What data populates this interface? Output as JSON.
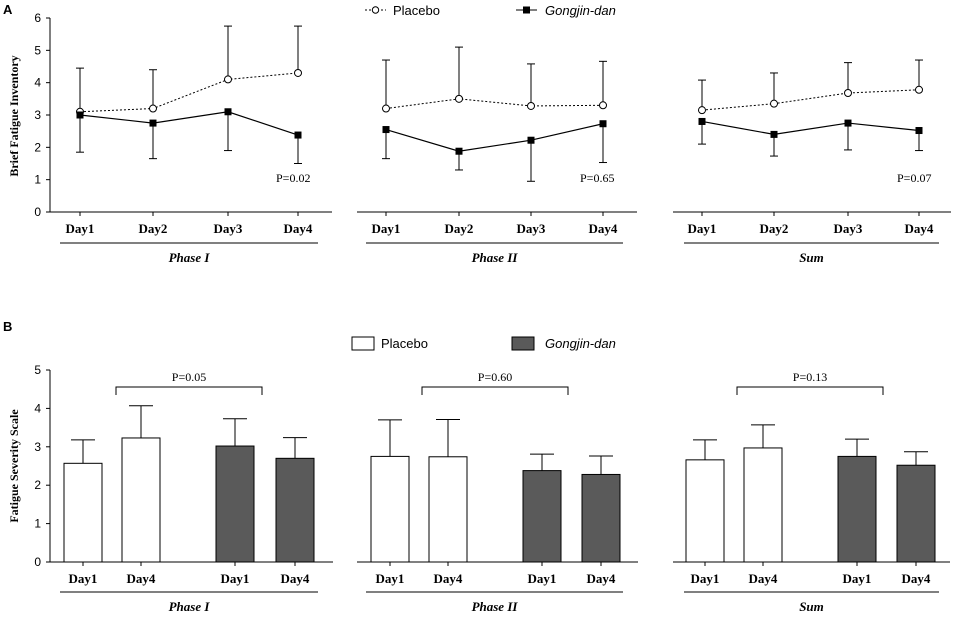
{
  "chart_data": [
    {
      "panel": "A",
      "type": "line",
      "ylabel": "Brief Fatigue Inventory",
      "ylim": [
        0,
        6
      ],
      "yticks": [
        0,
        1,
        2,
        3,
        4,
        5,
        6
      ],
      "legend": {
        "placement": "top-center",
        "entries": [
          "Placebo",
          "Gongjin-dan"
        ]
      },
      "groups": [
        {
          "name": "Phase I",
          "categories": [
            "Day1",
            "Day2",
            "Day3",
            "Day4"
          ],
          "p_value": "P=0.02",
          "series": [
            {
              "name": "Placebo",
              "values": [
                3.1,
                3.2,
                4.1,
                4.3
              ],
              "error_high": [
                4.45,
                4.4,
                5.75,
                5.75
              ]
            },
            {
              "name": "Gongjin-dan",
              "values": [
                3.0,
                2.75,
                3.1,
                2.38
              ],
              "error_low": [
                1.85,
                1.65,
                1.9,
                1.5
              ]
            }
          ]
        },
        {
          "name": "Phase II",
          "categories": [
            "Day1",
            "Day2",
            "Day3",
            "Day4"
          ],
          "p_value": "P=0.65",
          "series": [
            {
              "name": "Placebo",
              "values": [
                3.2,
                3.5,
                3.28,
                3.3
              ],
              "error_high": [
                4.7,
                5.1,
                4.58,
                4.66
              ]
            },
            {
              "name": "Gongjin-dan",
              "values": [
                2.55,
                1.88,
                2.22,
                2.73
              ],
              "error_low": [
                1.65,
                1.3,
                0.95,
                1.53
              ]
            }
          ]
        },
        {
          "name": "Sum",
          "categories": [
            "Day1",
            "Day2",
            "Day3",
            "Day4"
          ],
          "p_value": "P=0.07",
          "series": [
            {
              "name": "Placebo",
              "values": [
                3.15,
                3.35,
                3.68,
                3.78
              ],
              "error_high": [
                4.08,
                4.3,
                4.62,
                4.7
              ]
            },
            {
              "name": "Gongjin-dan",
              "values": [
                2.8,
                2.4,
                2.75,
                2.52
              ],
              "error_low": [
                2.1,
                1.73,
                1.92,
                1.9
              ]
            }
          ]
        }
      ]
    },
    {
      "panel": "B",
      "type": "bar",
      "ylabel": "Fatigue Severity Scale",
      "ylim": [
        0,
        5
      ],
      "yticks": [
        0,
        1,
        2,
        3,
        4,
        5
      ],
      "legend": {
        "placement": "top-center",
        "entries": [
          "Placebo",
          "Gongjin-dan"
        ]
      },
      "groups": [
        {
          "name": "Phase I",
          "p_value": "P=0.05",
          "bars": [
            {
              "series": "Placebo",
              "label": "Day1",
              "value": 2.57,
              "error": 3.18
            },
            {
              "series": "Placebo",
              "label": "Day4",
              "value": 3.23,
              "error": 4.07
            },
            {
              "series": "Gongjin-dan",
              "label": "Day1",
              "value": 3.02,
              "error": 3.73
            },
            {
              "series": "Gongjin-dan",
              "label": "Day4",
              "value": 2.7,
              "error": 3.24
            }
          ]
        },
        {
          "name": "Phase II",
          "p_value": "P=0.60",
          "bars": [
            {
              "series": "Placebo",
              "label": "Day1",
              "value": 2.75,
              "error": 3.7
            },
            {
              "series": "Placebo",
              "label": "Day4",
              "value": 2.74,
              "error": 3.71
            },
            {
              "series": "Gongjin-dan",
              "label": "Day1",
              "value": 2.38,
              "error": 2.81
            },
            {
              "series": "Gongjin-dan",
              "label": "Day4",
              "value": 2.28,
              "error": 2.76
            }
          ]
        },
        {
          "name": "Sum",
          "p_value": "P=0.13",
          "bars": [
            {
              "series": "Placebo",
              "label": "Day1",
              "value": 2.66,
              "error": 3.18
            },
            {
              "series": "Placebo",
              "label": "Day4",
              "value": 2.97,
              "error": 3.57
            },
            {
              "series": "Gongjin-dan",
              "label": "Day1",
              "value": 2.75,
              "error": 3.2
            },
            {
              "series": "Gongjin-dan",
              "label": "Day4",
              "value": 2.52,
              "error": 2.87
            }
          ]
        }
      ]
    }
  ],
  "colors": {
    "axis": "#000000",
    "placebo_fill": "#ffffff",
    "gongjin_fill": "#5a5a5a"
  }
}
